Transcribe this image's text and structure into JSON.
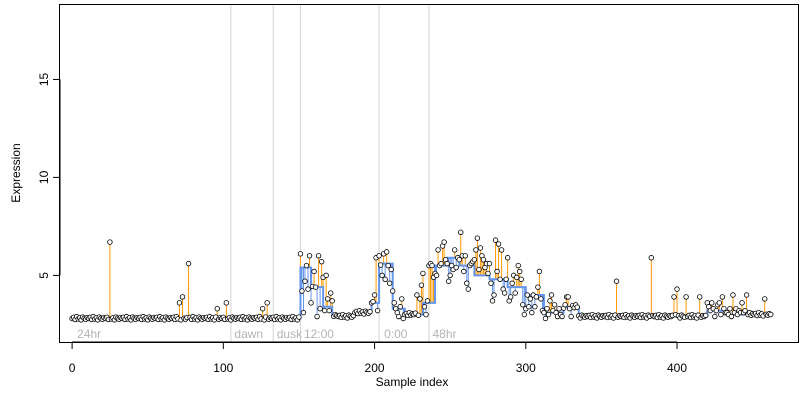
{
  "chart_data": {
    "type": "scatter",
    "title": "",
    "xlabel": "Sample index",
    "ylabel": "Expression",
    "xlim": [
      -8,
      480
    ],
    "ylim": [
      1.6,
      18.8
    ],
    "xticks": [
      0,
      100,
      200,
      300,
      400
    ],
    "yticks": [
      5,
      10,
      15
    ],
    "grid": false,
    "colors": {
      "points_fill": "#ffffff",
      "points_stroke": "#000000",
      "fit": "#6495ed",
      "residual_up": "#ff9900",
      "residual_down": "#6495ed",
      "segment_lines": "#d3d3d3",
      "segment_labels": "#b4b4b4"
    },
    "segments": [
      {
        "label": "24hr",
        "x": 2
      },
      {
        "label": "dawn",
        "x": 106
      },
      {
        "label": "dusk",
        "x": 134
      },
      {
        "label": "12:00",
        "x": 152
      },
      {
        "label": "0:00",
        "x": 205
      },
      {
        "label": "48hr",
        "x": 237
      }
    ],
    "boundaries": [
      105,
      133,
      151,
      203,
      236
    ],
    "baseline_outliers": [
      {
        "x": 25,
        "y": 6.7
      },
      {
        "x": 71,
        "y": 3.6
      },
      {
        "x": 73,
        "y": 3.9
      },
      {
        "x": 77,
        "y": 5.6
      },
      {
        "x": 96,
        "y": 3.3
      },
      {
        "x": 102,
        "y": 3.6
      },
      {
        "x": 126,
        "y": 3.3
      },
      {
        "x": 129,
        "y": 3.6
      },
      {
        "x": 360,
        "y": 4.7
      },
      {
        "x": 383,
        "y": 5.9
      },
      {
        "x": 398,
        "y": 3.9
      },
      {
        "x": 400,
        "y": 4.3
      },
      {
        "x": 406,
        "y": 3.9
      },
      {
        "x": 415,
        "y": 3.9
      },
      {
        "x": 430,
        "y": 3.9
      },
      {
        "x": 437,
        "y": 4.0
      },
      {
        "x": 443,
        "y": 3.6
      },
      {
        "x": 446,
        "y": 4.0
      },
      {
        "x": 458,
        "y": 3.8
      }
    ],
    "fit_steps": [
      {
        "x0": 0,
        "x1": 151,
        "y": 2.8
      },
      {
        "x0": 151,
        "x1": 158,
        "y": 5.4
      },
      {
        "x0": 158,
        "x1": 166,
        "y": 4.4
      },
      {
        "x0": 166,
        "x1": 172,
        "y": 3.4
      },
      {
        "x0": 172,
        "x1": 187,
        "y": 2.9
      },
      {
        "x0": 187,
        "x1": 198,
        "y": 3.1
      },
      {
        "x0": 198,
        "x1": 203,
        "y": 3.6
      },
      {
        "x0": 203,
        "x1": 212,
        "y": 5.6
      },
      {
        "x0": 212,
        "x1": 220,
        "y": 3.3
      },
      {
        "x0": 220,
        "x1": 232,
        "y": 3.0
      },
      {
        "x0": 232,
        "x1": 240,
        "y": 3.6
      },
      {
        "x0": 240,
        "x1": 248,
        "y": 5.5
      },
      {
        "x0": 248,
        "x1": 256,
        "y": 5.9
      },
      {
        "x0": 256,
        "x1": 266,
        "y": 5.5
      },
      {
        "x0": 266,
        "x1": 276,
        "y": 5.0
      },
      {
        "x0": 276,
        "x1": 288,
        "y": 4.8
      },
      {
        "x0": 288,
        "x1": 300,
        "y": 4.4
      },
      {
        "x0": 300,
        "x1": 312,
        "y": 4.0
      },
      {
        "x0": 312,
        "x1": 325,
        "y": 3.1
      },
      {
        "x0": 325,
        "x1": 335,
        "y": 3.4
      },
      {
        "x0": 335,
        "x1": 420,
        "y": 2.9
      },
      {
        "x0": 420,
        "x1": 432,
        "y": 3.2
      },
      {
        "x0": 432,
        "x1": 462,
        "y": 3.0
      }
    ],
    "active_points": [
      {
        "x": 151,
        "y": 6.1
      },
      {
        "x": 152,
        "y": 4.2
      },
      {
        "x": 153,
        "y": 3.1
      },
      {
        "x": 154,
        "y": 4.7
      },
      {
        "x": 155,
        "y": 5.5
      },
      {
        "x": 156,
        "y": 4.3
      },
      {
        "x": 157,
        "y": 6.0
      },
      {
        "x": 158,
        "y": 3.6
      },
      {
        "x": 160,
        "y": 5.2
      },
      {
        "x": 161,
        "y": 4.4
      },
      {
        "x": 162,
        "y": 2.9
      },
      {
        "x": 163,
        "y": 6.0
      },
      {
        "x": 164,
        "y": 3.3
      },
      {
        "x": 165,
        "y": 5.7
      },
      {
        "x": 166,
        "y": 4.9
      },
      {
        "x": 167,
        "y": 3.2
      },
      {
        "x": 168,
        "y": 5.0
      },
      {
        "x": 169,
        "y": 3.8
      },
      {
        "x": 170,
        "y": 3.2
      },
      {
        "x": 171,
        "y": 4.1
      },
      {
        "x": 172,
        "y": 3.7
      },
      {
        "x": 174,
        "y": 3.0
      },
      {
        "x": 200,
        "y": 4.0
      },
      {
        "x": 201,
        "y": 5.9
      },
      {
        "x": 202,
        "y": 3.2
      },
      {
        "x": 203,
        "y": 6.0
      },
      {
        "x": 205,
        "y": 5.0
      },
      {
        "x": 206,
        "y": 6.1
      },
      {
        "x": 207,
        "y": 4.8
      },
      {
        "x": 208,
        "y": 6.2
      },
      {
        "x": 209,
        "y": 5.5
      },
      {
        "x": 210,
        "y": 4.6
      },
      {
        "x": 211,
        "y": 5.3
      },
      {
        "x": 212,
        "y": 4.2
      },
      {
        "x": 213,
        "y": 3.6
      },
      {
        "x": 214,
        "y": 3.3
      },
      {
        "x": 215,
        "y": 3.1
      },
      {
        "x": 216,
        "y": 2.9
      },
      {
        "x": 217,
        "y": 3.4
      },
      {
        "x": 218,
        "y": 3.8
      },
      {
        "x": 219,
        "y": 2.8
      },
      {
        "x": 226,
        "y": 3.0
      },
      {
        "x": 228,
        "y": 4.0
      },
      {
        "x": 230,
        "y": 3.8
      },
      {
        "x": 231,
        "y": 4.5
      },
      {
        "x": 232,
        "y": 5.1
      },
      {
        "x": 233,
        "y": 3.4
      },
      {
        "x": 234,
        "y": 3.0
      },
      {
        "x": 235,
        "y": 3.7
      },
      {
        "x": 236,
        "y": 5.5
      },
      {
        "x": 237,
        "y": 5.6
      },
      {
        "x": 238,
        "y": 5.5
      },
      {
        "x": 239,
        "y": 4.9
      },
      {
        "x": 240,
        "y": 5.1
      },
      {
        "x": 241,
        "y": 5.0
      },
      {
        "x": 242,
        "y": 6.3
      },
      {
        "x": 243,
        "y": 5.5
      },
      {
        "x": 244,
        "y": 5.6
      },
      {
        "x": 245,
        "y": 6.5
      },
      {
        "x": 246,
        "y": 6.7
      },
      {
        "x": 247,
        "y": 5.8
      },
      {
        "x": 248,
        "y": 5.6
      },
      {
        "x": 249,
        "y": 4.7
      },
      {
        "x": 250,
        "y": 5.0
      },
      {
        "x": 251,
        "y": 5.5
      },
      {
        "x": 252,
        "y": 5.3
      },
      {
        "x": 253,
        "y": 6.3
      },
      {
        "x": 254,
        "y": 5.4
      },
      {
        "x": 255,
        "y": 5.9
      },
      {
        "x": 256,
        "y": 5.8
      },
      {
        "x": 257,
        "y": 7.2
      },
      {
        "x": 258,
        "y": 6.0
      },
      {
        "x": 259,
        "y": 5.2
      },
      {
        "x": 260,
        "y": 6.0
      },
      {
        "x": 261,
        "y": 4.6
      },
      {
        "x": 262,
        "y": 4.3
      },
      {
        "x": 263,
        "y": 5.5
      },
      {
        "x": 264,
        "y": 5.6
      },
      {
        "x": 265,
        "y": 5.7
      },
      {
        "x": 266,
        "y": 5.8
      },
      {
        "x": 267,
        "y": 6.3
      },
      {
        "x": 268,
        "y": 6.9
      },
      {
        "x": 269,
        "y": 5.3
      },
      {
        "x": 270,
        "y": 6.4
      },
      {
        "x": 271,
        "y": 6.0
      },
      {
        "x": 272,
        "y": 5.8
      },
      {
        "x": 273,
        "y": 5.4
      },
      {
        "x": 274,
        "y": 5.6
      },
      {
        "x": 275,
        "y": 5.1
      },
      {
        "x": 276,
        "y": 5.6
      },
      {
        "x": 277,
        "y": 4.6
      },
      {
        "x": 278,
        "y": 3.7
      },
      {
        "x": 279,
        "y": 4.0
      },
      {
        "x": 280,
        "y": 6.8
      },
      {
        "x": 281,
        "y": 5.2
      },
      {
        "x": 282,
        "y": 6.6
      },
      {
        "x": 283,
        "y": 4.8
      },
      {
        "x": 284,
        "y": 6.3
      },
      {
        "x": 285,
        "y": 4.3
      },
      {
        "x": 286,
        "y": 4.1
      },
      {
        "x": 287,
        "y": 4.8
      },
      {
        "x": 288,
        "y": 5.9
      },
      {
        "x": 289,
        "y": 3.7
      },
      {
        "x": 290,
        "y": 3.9
      },
      {
        "x": 291,
        "y": 4.6
      },
      {
        "x": 292,
        "y": 5.0
      },
      {
        "x": 293,
        "y": 4.1
      },
      {
        "x": 294,
        "y": 4.9
      },
      {
        "x": 295,
        "y": 5.5
      },
      {
        "x": 296,
        "y": 5.2
      },
      {
        "x": 297,
        "y": 4.8
      },
      {
        "x": 298,
        "y": 3.5
      },
      {
        "x": 299,
        "y": 3.0
      },
      {
        "x": 300,
        "y": 3.3
      },
      {
        "x": 301,
        "y": 4.0
      },
      {
        "x": 302,
        "y": 3.4
      },
      {
        "x": 303,
        "y": 3.8
      },
      {
        "x": 304,
        "y": 3.1
      },
      {
        "x": 305,
        "y": 4.0
      },
      {
        "x": 306,
        "y": 3.4
      },
      {
        "x": 307,
        "y": 3.9
      },
      {
        "x": 308,
        "y": 4.4
      },
      {
        "x": 309,
        "y": 5.2
      },
      {
        "x": 310,
        "y": 3.8
      },
      {
        "x": 311,
        "y": 3.2
      },
      {
        "x": 312,
        "y": 3.1
      },
      {
        "x": 313,
        "y": 2.8
      },
      {
        "x": 314,
        "y": 3.3
      },
      {
        "x": 315,
        "y": 3.0
      },
      {
        "x": 316,
        "y": 3.7
      },
      {
        "x": 317,
        "y": 4.0
      },
      {
        "x": 318,
        "y": 3.2
      },
      {
        "x": 319,
        "y": 3.5
      },
      {
        "x": 320,
        "y": 3.1
      },
      {
        "x": 321,
        "y": 2.9
      },
      {
        "x": 322,
        "y": 3.3
      },
      {
        "x": 323,
        "y": 3.0
      },
      {
        "x": 324,
        "y": 2.9
      },
      {
        "x": 326,
        "y": 3.5
      },
      {
        "x": 327,
        "y": 3.9
      },
      {
        "x": 328,
        "y": 3.9
      },
      {
        "x": 329,
        "y": 3.3
      },
      {
        "x": 330,
        "y": 2.9
      },
      {
        "x": 420,
        "y": 3.6
      },
      {
        "x": 421,
        "y": 3.4
      },
      {
        "x": 422,
        "y": 3.2
      },
      {
        "x": 423,
        "y": 3.6
      },
      {
        "x": 424,
        "y": 3.3
      },
      {
        "x": 425,
        "y": 2.9
      },
      {
        "x": 426,
        "y": 3.2
      },
      {
        "x": 427,
        "y": 3.5
      },
      {
        "x": 428,
        "y": 3.6
      },
      {
        "x": 429,
        "y": 3.0
      },
      {
        "x": 431,
        "y": 3.3
      },
      {
        "x": 433,
        "y": 3.1
      },
      {
        "x": 434,
        "y": 3.0
      },
      {
        "x": 435,
        "y": 3.3
      },
      {
        "x": 436,
        "y": 2.9
      },
      {
        "x": 438,
        "y": 3.1
      },
      {
        "x": 439,
        "y": 3.3
      },
      {
        "x": 440,
        "y": 3.0
      },
      {
        "x": 441,
        "y": 3.2
      },
      {
        "x": 442,
        "y": 3.1
      },
      {
        "x": 444,
        "y": 3.1
      },
      {
        "x": 445,
        "y": 3.2
      },
      {
        "x": 447,
        "y": 3.0
      },
      {
        "x": 448,
        "y": 3.1
      }
    ]
  }
}
